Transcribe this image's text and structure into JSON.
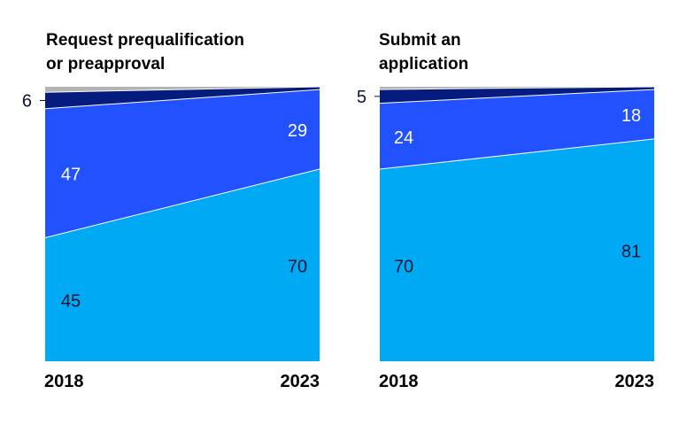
{
  "chart_data": [
    {
      "type": "area",
      "title_lines": [
        "Request prequalification",
        "or preapproval"
      ],
      "x": [
        "2018",
        "2023"
      ],
      "series": [
        {
          "values": [
            45,
            70
          ],
          "color": "#00a9f4"
        },
        {
          "values": [
            47,
            29
          ],
          "color": "#2251ff"
        },
        {
          "values": [
            6,
            1
          ],
          "color": "#051c7e"
        },
        {
          "values": [
            2,
            0
          ],
          "color": "#b3b3b3"
        }
      ],
      "labels": {
        "left": [
          "45",
          "47",
          "6"
        ],
        "right": [
          "70",
          "29"
        ]
      },
      "ylim": [
        0,
        100
      ]
    },
    {
      "type": "area",
      "title_lines": [
        "Submit an",
        "application"
      ],
      "x": [
        "2018",
        "2023"
      ],
      "series": [
        {
          "values": [
            70,
            81
          ],
          "color": "#00a9f4"
        },
        {
          "values": [
            24,
            18
          ],
          "color": "#2251ff"
        },
        {
          "values": [
            5,
            1
          ],
          "color": "#051c7e"
        },
        {
          "values": [
            1,
            0
          ],
          "color": "#b3b3b3"
        }
      ],
      "labels": {
        "left": [
          "70",
          "24",
          "5"
        ],
        "right": [
          "81",
          "18"
        ]
      },
      "ylim": [
        0,
        100
      ]
    }
  ]
}
